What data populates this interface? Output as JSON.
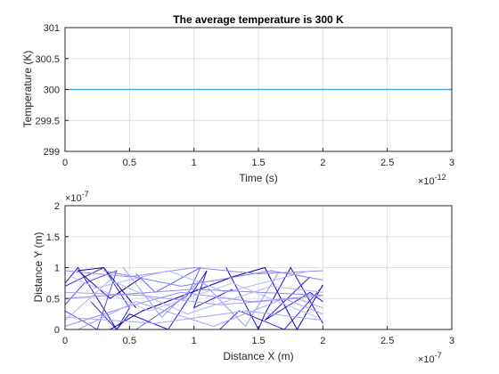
{
  "chart_data": [
    {
      "type": "line",
      "title": "The average temperature is 300 K",
      "xlabel": "Time (s)",
      "ylabel": "Temperature (K)",
      "xlim": [
        0,
        3
      ],
      "ylim": [
        299,
        301
      ],
      "x_multiplier": "×10",
      "x_exponent": "-12",
      "xticks": [
        0,
        0.5,
        1,
        1.5,
        2,
        2.5,
        3
      ],
      "xtick_labels": [
        "0",
        "0.5",
        "1",
        "1.5",
        "2",
        "2.5",
        "3"
      ],
      "yticks": [
        299,
        299.5,
        300,
        300.5,
        301
      ],
      "ytick_labels": [
        "299",
        "299.5",
        "300",
        "300.5",
        "301"
      ],
      "grid": true,
      "series": [
        {
          "color": "#4da6e8",
          "x": [
            0,
            3
          ],
          "y": [
            300,
            300
          ]
        }
      ]
    },
    {
      "type": "line",
      "xlabel": "Distance X (m)",
      "ylabel": "Distance Y (m)",
      "xlim": [
        0,
        3
      ],
      "ylim": [
        0,
        2
      ],
      "x_multiplier": "×10",
      "x_exponent": "-7",
      "y_multiplier": "×10",
      "y_exponent": "-7",
      "xticks": [
        0,
        0.5,
        1,
        1.5,
        2,
        2.5,
        3
      ],
      "xtick_labels": [
        "0",
        "0.5",
        "1",
        "1.5",
        "2",
        "2.5",
        "3"
      ],
      "yticks": [
        0,
        0.5,
        1,
        1.5,
        2
      ],
      "ytick_labels": [
        "0",
        "0.5",
        "1",
        "1.5",
        "2"
      ],
      "grid": true,
      "series": [
        {
          "color": "#1a1acc",
          "x": [
            0,
            0.1,
            0.4,
            0.5,
            0.8,
            1.1,
            1.0,
            1.3
          ],
          "y": [
            0.75,
            1.0,
            0.0,
            0.25,
            0.0,
            0.95,
            0.35,
            0.65
          ]
        },
        {
          "color": "#2a2ad4",
          "x": [
            0,
            0.3,
            0.5,
            0.4,
            0.2
          ],
          "y": [
            0.7,
            1.0,
            0.35,
            0.0,
            0.45
          ]
        },
        {
          "color": "#0000aa",
          "x": [
            0.35,
            0.6,
            1.3,
            1.55,
            1.8,
            2.0
          ],
          "y": [
            0.0,
            0.3,
            0.85,
            1.0,
            0.0,
            0.72
          ]
        },
        {
          "color": "#3333d6",
          "x": [
            0.85,
            1.2,
            1.35,
            1.7,
            2.0
          ],
          "y": [
            0.0,
            0.0,
            0.3,
            0.0,
            0.7
          ]
        },
        {
          "color": "#1515b8",
          "x": [
            1.25,
            1.5,
            1.55,
            1.75,
            2.0
          ],
          "y": [
            1.0,
            0.0,
            0.25,
            1.0,
            0.1
          ]
        },
        {
          "color": "#4a4ae0",
          "x": [
            0,
            0.25,
            0.4,
            0.15,
            0
          ],
          "y": [
            0.3,
            0.0,
            0.95,
            0.75,
            0.4
          ]
        },
        {
          "color": "#5c5cf0",
          "x": [
            0.55,
            0.95,
            1.05,
            0.7,
            0.55
          ],
          "y": [
            0.0,
            0.55,
            1.0,
            0.6,
            0.9
          ]
        },
        {
          "color": "#2020c0",
          "x": [
            1.9,
            1.55,
            1.9,
            2.0
          ],
          "y": [
            0.85,
            0.15,
            0.6,
            0.45
          ]
        },
        {
          "color": "#0a0aa0",
          "x": [
            0.6,
            0.35,
            0.1,
            0.3,
            0.55
          ],
          "y": [
            0.85,
            0.5,
            0.95,
            1.0,
            0.35
          ]
        },
        {
          "color": "#8d8df2",
          "x": [
            0,
            0.5,
            1.0,
            1.5,
            2.0
          ],
          "y": [
            0.95,
            0.85,
            1.0,
            0.9,
            0.95
          ]
        },
        {
          "color": "#9f9ff5",
          "x": [
            0,
            0.6,
            1.2,
            1.8,
            2.0
          ],
          "y": [
            0.6,
            0.55,
            0.4,
            0.5,
            0.35
          ]
        },
        {
          "color": "#a9a9f7",
          "x": [
            0,
            0.7,
            1.4,
            2.0
          ],
          "y": [
            0.2,
            0.1,
            0.3,
            0.15
          ]
        },
        {
          "color": "#7f7ff0",
          "x": [
            0.3,
            0.9,
            1.6,
            2.0
          ],
          "y": [
            0.95,
            0.7,
            0.95,
            0.8
          ]
        },
        {
          "color": "#9393f4",
          "x": [
            0,
            0.45,
            0.9,
            1.45,
            2.0
          ],
          "y": [
            0.05,
            0.35,
            0.6,
            0.45,
            0.55
          ]
        },
        {
          "color": "#b3b3f8",
          "x": [
            0.2,
            0.8,
            1.25,
            1.9
          ],
          "y": [
            0.65,
            0.95,
            0.6,
            0.95
          ]
        },
        {
          "color": "#8888f2",
          "x": [
            0,
            1.0,
            2.0
          ],
          "y": [
            0.5,
            0.65,
            0.55
          ]
        },
        {
          "color": "#a2a2f6",
          "x": [
            0.1,
            0.55,
            1.15,
            1.7,
            2.0
          ],
          "y": [
            0.0,
            0.45,
            0.05,
            0.5,
            0.25
          ]
        },
        {
          "color": "#bcbcf9",
          "x": [
            0.05,
            0.65,
            1.3,
            1.95
          ],
          "y": [
            0.85,
            0.3,
            0.75,
            0.2
          ]
        },
        {
          "color": "#9999f5",
          "x": [
            0.45,
            0.75,
            1.05,
            1.4,
            1.65
          ],
          "y": [
            1.0,
            0.2,
            0.8,
            0.05,
            0.9
          ]
        },
        {
          "color": "#b0b0f8",
          "x": [
            0.0,
            0.35,
            0.95,
            1.6,
            2.0
          ],
          "y": [
            0.15,
            0.8,
            0.25,
            0.7,
            0.6
          ]
        }
      ]
    }
  ]
}
